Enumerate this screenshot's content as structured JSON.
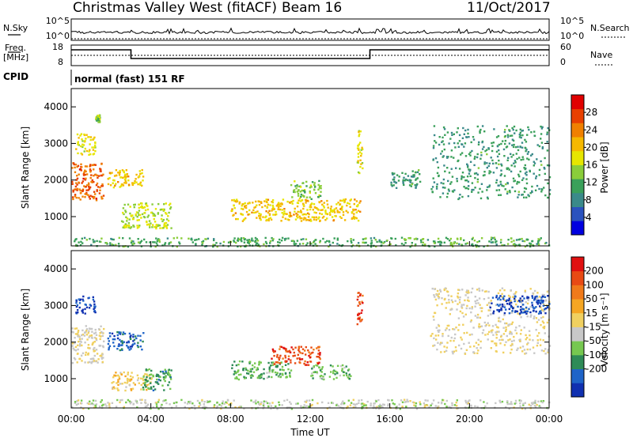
{
  "header": {
    "station": "Christmas Valley West (fitACF)",
    "beam": "Beam 16",
    "date": "11/Oct/2017"
  },
  "strip": {
    "nsky_label": "N.Sky",
    "nsky_ticks": [
      "10^5",
      "10^0"
    ],
    "nsearch_label": "N.Search",
    "nsearch_ticks": [
      "10^5",
      "10^0"
    ],
    "freq_label_1": "Freq.",
    "freq_label_2": "[MHz]",
    "freq_ticks": [
      "18",
      "8"
    ],
    "nave_label": "Nave",
    "nave_ticks": [
      "60",
      "0"
    ],
    "cpid_label": "CPID",
    "cpid_text": "normal (fast) 151 RF"
  },
  "axes": {
    "ylabel": "Slant Range [km]",
    "xlabel": "Time UT",
    "y_ticks": [
      "4000",
      "3000",
      "2000",
      "1000"
    ],
    "x_ticks": [
      "00:00",
      "04:00",
      "08:00",
      "12:00",
      "16:00",
      "20:00",
      "00:00"
    ]
  },
  "colorbars": {
    "power": {
      "label": "Power [dB]",
      "ticks": [
        "28",
        "24",
        "20",
        "16",
        "12",
        "8",
        "4"
      ],
      "colors": [
        "#0000e0",
        "#2a52be",
        "#3a8a8a",
        "#3aa05a",
        "#8acd3a",
        "#e6e600",
        "#f5b800",
        "#f08000",
        "#e84000",
        "#e00000"
      ]
    },
    "velocity": {
      "label": "Velocity [m s⁻¹]",
      "ticks": [
        "200",
        "100",
        "50",
        "15",
        "-15",
        "-50",
        "-100",
        "-200"
      ],
      "colors": [
        "#1030b0",
        "#1f64c8",
        "#2e8b57",
        "#76c850",
        "#c8c8c8",
        "#f0d060",
        "#f5a623",
        "#f07a1a",
        "#e84a14",
        "#e01010"
      ]
    }
  },
  "chart_data": [
    {
      "type": "heatmap",
      "title": "",
      "quantity": "Power",
      "xlabel": "Time UT",
      "ylabel": "Slant Range [km]",
      "xlim_hours": [
        0,
        24
      ],
      "ylim_km": [
        200,
        4500
      ],
      "colorbar": {
        "label": "Power [dB]",
        "range": [
          0,
          32
        ]
      },
      "regions": [
        {
          "t0": 0.0,
          "t1": 1.6,
          "r0": 1450,
          "r1": 2500,
          "value": 26
        },
        {
          "t0": 0.2,
          "t1": 1.2,
          "r0": 2700,
          "r1": 3300,
          "value": 18
        },
        {
          "t0": 1.2,
          "t1": 1.4,
          "r0": 3600,
          "r1": 3800,
          "value": 14
        },
        {
          "t0": 1.8,
          "t1": 3.6,
          "r0": 1800,
          "r1": 2300,
          "value": 20
        },
        {
          "t0": 2.5,
          "t1": 5.0,
          "r0": 700,
          "r1": 1400,
          "value": 16
        },
        {
          "t0": 8.0,
          "t1": 14.5,
          "r0": 900,
          "r1": 1500,
          "value": 20
        },
        {
          "t0": 11.0,
          "t1": 12.5,
          "r0": 1500,
          "r1": 2000,
          "value": 14
        },
        {
          "t0": 14.3,
          "t1": 14.6,
          "r0": 2200,
          "r1": 3400,
          "value": 18
        },
        {
          "t0": 16.0,
          "t1": 17.5,
          "r0": 1800,
          "r1": 2300,
          "value": 10
        },
        {
          "t0": 18.0,
          "t1": 24.0,
          "r0": 1500,
          "r1": 3500,
          "value": 10
        },
        {
          "t0": 0.0,
          "t1": 24.0,
          "r0": 200,
          "r1": 450,
          "value": 12
        }
      ]
    },
    {
      "type": "heatmap",
      "title": "",
      "quantity": "Velocity",
      "xlabel": "Time UT",
      "ylabel": "Slant Range [km]",
      "xlim_hours": [
        0,
        24
      ],
      "ylim_km": [
        200,
        4500
      ],
      "colorbar": {
        "label": "Velocity [m s⁻¹]",
        "range": [
          -250,
          250
        ]
      },
      "regions": [
        {
          "t0": 0.0,
          "t1": 1.6,
          "r0": 1450,
          "r1": 2500,
          "value": 0
        },
        {
          "t0": 0.2,
          "t1": 1.2,
          "r0": 2800,
          "r1": 3300,
          "value": -200
        },
        {
          "t0": 1.8,
          "t1": 3.6,
          "r0": 1800,
          "r1": 2300,
          "value": -180
        },
        {
          "t0": 2.0,
          "t1": 4.0,
          "r0": 700,
          "r1": 1200,
          "value": 30
        },
        {
          "t0": 3.5,
          "t1": 5.0,
          "r0": 700,
          "r1": 1300,
          "value": -110
        },
        {
          "t0": 8.0,
          "t1": 11.0,
          "r0": 1000,
          "r1": 1500,
          "value": -90
        },
        {
          "t0": 10.0,
          "t1": 12.5,
          "r0": 1400,
          "r1": 1900,
          "value": 180
        },
        {
          "t0": 12.0,
          "t1": 14.0,
          "r0": 1000,
          "r1": 1400,
          "value": -80
        },
        {
          "t0": 14.3,
          "t1": 14.6,
          "r0": 2500,
          "r1": 3400,
          "value": 180
        },
        {
          "t0": 18.0,
          "t1": 24.0,
          "r0": 1700,
          "r1": 3500,
          "value": 0
        },
        {
          "t0": 21.0,
          "t1": 24.0,
          "r0": 2800,
          "r1": 3300,
          "value": -200
        },
        {
          "t0": 0.0,
          "t1": 24.0,
          "r0": 200,
          "r1": 450,
          "value": -30
        }
      ]
    }
  ]
}
